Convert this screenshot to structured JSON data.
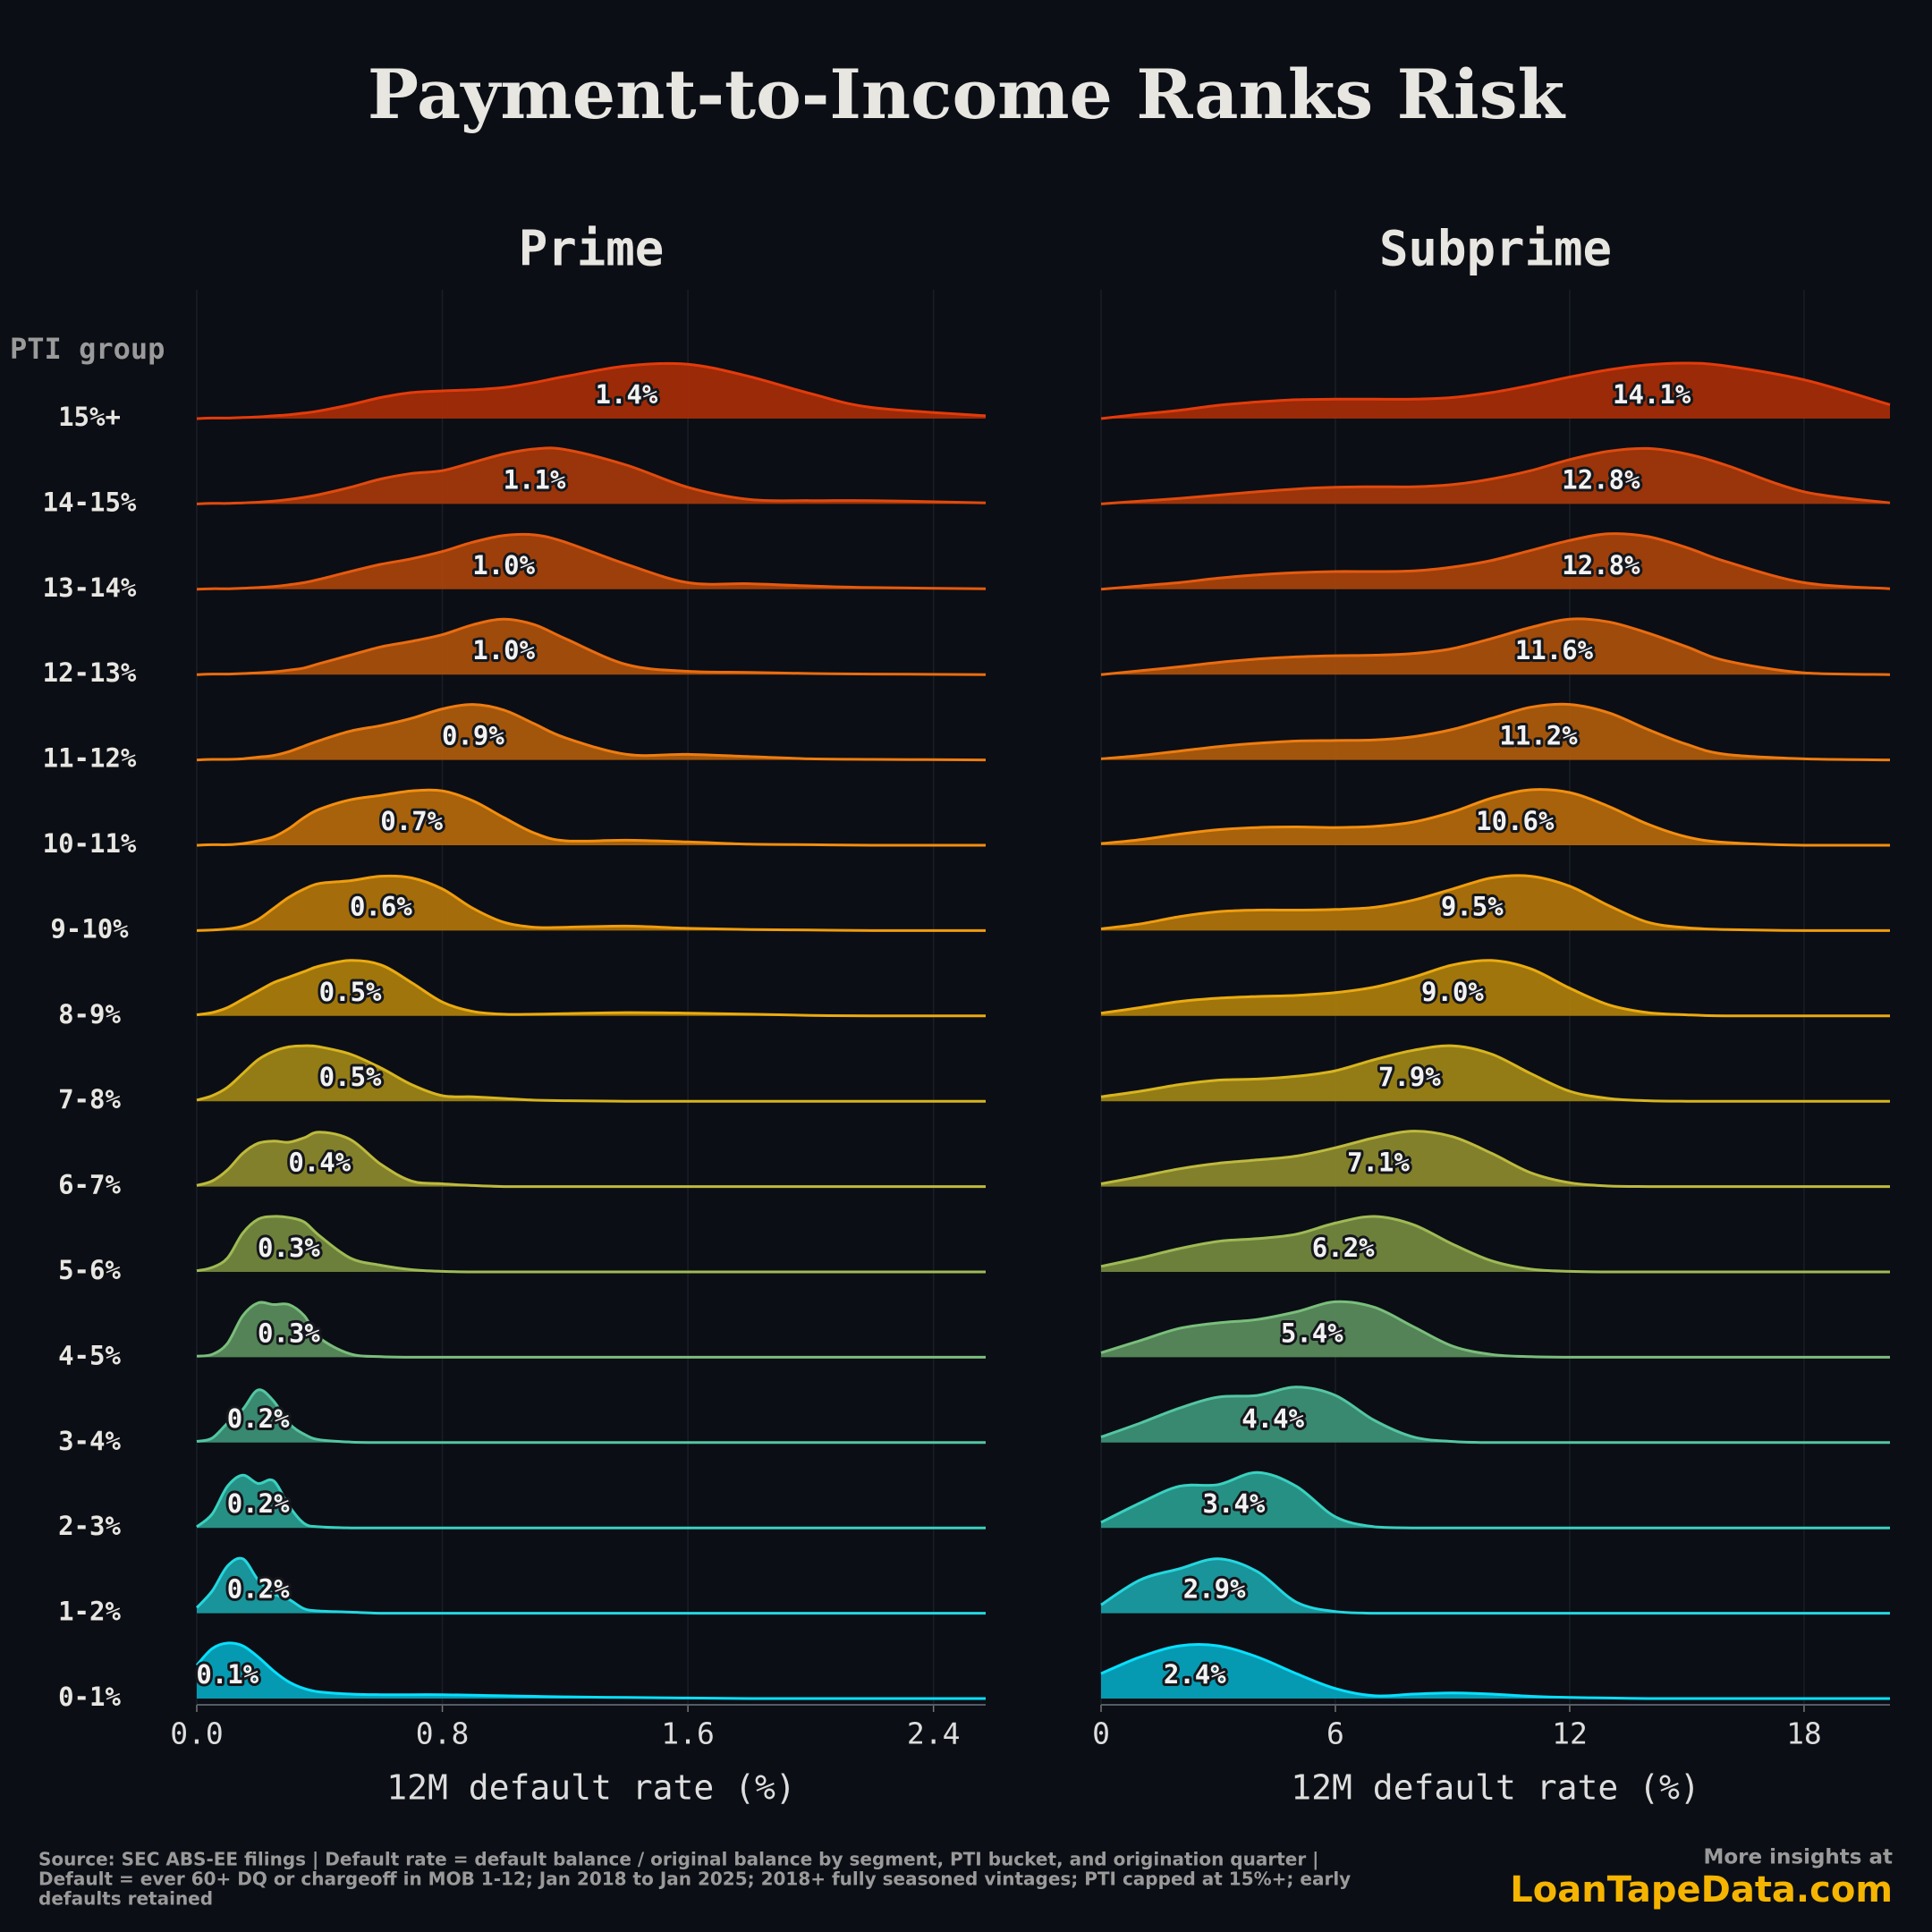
{
  "title": "Payment-to-Income Ranks Risk",
  "y_axis_title": "PTI group",
  "chart_data": [
    {
      "type": "ridgeline",
      "title": "Prime",
      "x_label": "12M default rate (%)",
      "categories": [
        "0-1%",
        "1-2%",
        "2-3%",
        "3-4%",
        "4-5%",
        "5-6%",
        "6-7%",
        "7-8%",
        "8-9%",
        "9-10%",
        "10-11%",
        "11-12%",
        "12-13%",
        "13-14%",
        "14-15%",
        "15%+"
      ],
      "xlim": [
        0,
        2.57
      ],
      "xticks": [
        {
          "value": 0,
          "label": "0.0"
        },
        0.8,
        1.6,
        2.4
      ],
      "grid": true,
      "x": [
        0,
        0.05,
        0.1,
        0.15,
        0.2,
        0.25,
        0.3,
        0.35,
        0.4,
        0.5,
        0.6,
        0.7,
        0.8,
        0.9,
        1.0,
        1.1,
        1.2,
        1.4,
        1.6,
        1.8,
        2.0,
        2.2,
        2.57
      ],
      "series": [
        {
          "color": "#05a6c0",
          "mean": 0.1,
          "mean_label": "0.1%",
          "values": [
            0.6,
            0.9,
            1,
            0.95,
            0.75,
            0.5,
            0.3,
            0.18,
            0.12,
            0.08,
            0.07,
            0.07,
            0.07,
            0.06,
            0.05,
            0.04,
            0.03,
            0.02,
            0.01,
            0,
            0,
            0,
            0
          ]
        },
        {
          "color": "#1a9fa6",
          "mean": 0.2,
          "mean_label": "0.2%",
          "values": [
            0.1,
            0.4,
            0.85,
            0.98,
            0.6,
            0.35,
            0.25,
            0.08,
            0.04,
            0.02,
            0,
            0,
            0,
            0,
            0,
            0,
            0,
            0,
            0,
            0,
            0,
            0,
            0
          ]
        },
        {
          "color": "#2a9b8e",
          "mean": 0.2,
          "mean_label": "0.2%",
          "values": [
            0.02,
            0.25,
            0.75,
            0.95,
            0.8,
            0.85,
            0.4,
            0.08,
            0.02,
            0,
            0,
            0,
            0,
            0,
            0,
            0,
            0,
            0,
            0,
            0,
            0,
            0,
            0
          ]
        },
        {
          "color": "#3e9378",
          "mean": 0.2,
          "mean_label": "0.2%",
          "values": [
            0.02,
            0.08,
            0.35,
            0.6,
            0.95,
            0.75,
            0.35,
            0.15,
            0.05,
            0.01,
            0,
            0,
            0,
            0,
            0,
            0,
            0,
            0,
            0,
            0,
            0,
            0,
            0
          ]
        },
        {
          "color": "#5a8d5c",
          "mean": 0.3,
          "mean_label": "0.3%",
          "values": [
            0.02,
            0.05,
            0.25,
            0.75,
            0.98,
            0.95,
            0.95,
            0.75,
            0.35,
            0.06,
            0.01,
            0,
            0,
            0,
            0,
            0,
            0,
            0,
            0,
            0,
            0,
            0,
            0
          ]
        },
        {
          "color": "#768a3f",
          "mean": 0.3,
          "mean_label": "0.3%",
          "values": [
            0.02,
            0.08,
            0.25,
            0.7,
            0.95,
            1,
            0.98,
            0.9,
            0.65,
            0.25,
            0.12,
            0.04,
            0.01,
            0,
            0,
            0,
            0,
            0,
            0,
            0,
            0,
            0,
            0
          ]
        },
        {
          "color": "#8d8a2e",
          "mean": 0.4,
          "mean_label": "0.4%",
          "values": [
            0.02,
            0.1,
            0.3,
            0.6,
            0.78,
            0.82,
            0.8,
            0.88,
            0.98,
            0.85,
            0.4,
            0.1,
            0.05,
            0.02,
            0,
            0,
            0,
            0,
            0,
            0,
            0,
            0,
            0
          ]
        },
        {
          "color": "#a08617",
          "mean": 0.5,
          "mean_label": "0.5%",
          "values": [
            0.02,
            0.1,
            0.25,
            0.5,
            0.75,
            0.9,
            0.98,
            1,
            0.98,
            0.85,
            0.6,
            0.3,
            0.1,
            0.08,
            0.05,
            0.02,
            0.01,
            0,
            0,
            0,
            0,
            0,
            0
          ]
        },
        {
          "color": "#ae7f0c",
          "mean": 0.5,
          "mean_label": "0.5%",
          "values": [
            0.02,
            0.06,
            0.15,
            0.3,
            0.45,
            0.6,
            0.7,
            0.8,
            0.9,
            1,
            0.92,
            0.6,
            0.25,
            0.08,
            0.03,
            0.03,
            0.04,
            0.06,
            0.05,
            0.03,
            0.01,
            0,
            0
          ]
        },
        {
          "color": "#b2740a",
          "mean": 0.6,
          "mean_label": "0.6%",
          "values": [
            0,
            0.01,
            0.03,
            0.08,
            0.2,
            0.4,
            0.6,
            0.75,
            0.85,
            0.9,
            0.98,
            0.95,
            0.75,
            0.4,
            0.15,
            0.06,
            0.06,
            0.08,
            0.04,
            0.02,
            0.01,
            0,
            0
          ]
        },
        {
          "color": "#b5690b",
          "mean": 0.7,
          "mean_label": "0.7%",
          "values": [
            0,
            0.01,
            0.01,
            0.03,
            0.08,
            0.15,
            0.3,
            0.5,
            0.65,
            0.82,
            0.9,
            0.98,
            0.98,
            0.8,
            0.5,
            0.22,
            0.08,
            0.09,
            0.06,
            0.02,
            0.01,
            0,
            0
          ]
        },
        {
          "color": "#b05c0c",
          "mean": 0.9,
          "mean_label": "0.9%",
          "values": [
            0,
            0.01,
            0.01,
            0.02,
            0.05,
            0.08,
            0.15,
            0.25,
            0.35,
            0.52,
            0.62,
            0.75,
            0.92,
            1,
            0.9,
            0.65,
            0.4,
            0.1,
            0.1,
            0.06,
            0.02,
            0.01,
            0
          ]
        },
        {
          "color": "#ad500c",
          "mean": 1.0,
          "mean_label": "1.0%",
          "values": [
            0,
            0.01,
            0.01,
            0.02,
            0.03,
            0.05,
            0.08,
            0.12,
            0.2,
            0.35,
            0.5,
            0.6,
            0.72,
            0.9,
            1,
            0.9,
            0.65,
            0.18,
            0.06,
            0.04,
            0.02,
            0.01,
            0
          ]
        },
        {
          "color": "#aa430b",
          "mean": 1.0,
          "mean_label": "1.0%",
          "values": [
            0,
            0.01,
            0.01,
            0.02,
            0.03,
            0.05,
            0.08,
            0.12,
            0.18,
            0.32,
            0.45,
            0.55,
            0.68,
            0.85,
            0.97,
            0.98,
            0.85,
            0.45,
            0.12,
            0.1,
            0.06,
            0.03,
            0.01
          ]
        },
        {
          "color": "#a7370a",
          "mean": 1.1,
          "mean_label": "1.1%",
          "values": [
            0,
            0.01,
            0.01,
            0.02,
            0.03,
            0.05,
            0.08,
            0.12,
            0.17,
            0.3,
            0.45,
            0.55,
            0.6,
            0.75,
            0.9,
            0.99,
            0.98,
            0.7,
            0.3,
            0.08,
            0.06,
            0.06,
            0.02
          ]
        },
        {
          "color": "#a82c08",
          "mean": 1.4,
          "mean_label": "1.4%",
          "values": [
            0,
            0.01,
            0.01,
            0.02,
            0.03,
            0.05,
            0.07,
            0.1,
            0.14,
            0.25,
            0.38,
            0.47,
            0.5,
            0.52,
            0.56,
            0.65,
            0.76,
            0.95,
            0.98,
            0.76,
            0.45,
            0.2,
            0.05
          ]
        }
      ]
    },
    {
      "type": "ridgeline",
      "title": "Subprime",
      "x_label": "12M default rate (%)",
      "xlim": [
        0,
        20.2
      ],
      "xticks": [
        0,
        6,
        12,
        18
      ],
      "grid": true,
      "x": [
        0,
        1,
        2,
        3,
        4,
        5,
        6,
        7,
        8,
        9,
        10,
        11,
        12,
        13,
        14,
        15,
        16,
        18,
        20.2
      ],
      "series": [
        {
          "color": "#05a6c0",
          "mean": 2.4,
          "mean_label": "2.4%",
          "values": [
            0.45,
            0.75,
            0.95,
            0.95,
            0.75,
            0.45,
            0.18,
            0.05,
            0.08,
            0.1,
            0.08,
            0.04,
            0.02,
            0.01,
            0,
            0,
            0,
            0,
            0
          ]
        },
        {
          "color": "#1a9fa6",
          "mean": 2.9,
          "mean_label": "2.9%",
          "values": [
            0.15,
            0.6,
            0.8,
            0.98,
            0.75,
            0.2,
            0.03,
            0,
            0,
            0,
            0,
            0,
            0,
            0,
            0,
            0,
            0,
            0,
            0
          ]
        },
        {
          "color": "#2a9b8e",
          "mean": 3.4,
          "mean_label": "3.4%",
          "values": [
            0.1,
            0.45,
            0.75,
            0.78,
            1,
            0.75,
            0.2,
            0.02,
            0,
            0,
            0,
            0,
            0,
            0,
            0,
            0,
            0,
            0,
            0
          ]
        },
        {
          "color": "#3e9378",
          "mean": 4.4,
          "mean_label": "4.4%",
          "values": [
            0.1,
            0.35,
            0.62,
            0.82,
            0.85,
            1,
            0.85,
            0.4,
            0.1,
            0.02,
            0,
            0,
            0,
            0,
            0,
            0,
            0,
            0,
            0
          ]
        },
        {
          "color": "#5a8d5c",
          "mean": 5.4,
          "mean_label": "5.4%",
          "values": [
            0.08,
            0.3,
            0.52,
            0.62,
            0.68,
            0.82,
            1,
            0.9,
            0.55,
            0.2,
            0.05,
            0.01,
            0,
            0,
            0,
            0,
            0,
            0,
            0
          ]
        },
        {
          "color": "#768a3f",
          "mean": 6.2,
          "mean_label": "6.2%",
          "values": [
            0.1,
            0.25,
            0.42,
            0.55,
            0.6,
            0.68,
            0.88,
            1,
            0.85,
            0.5,
            0.2,
            0.05,
            0.01,
            0,
            0,
            0,
            0,
            0,
            0
          ]
        },
        {
          "color": "#8d8a2e",
          "mean": 7.1,
          "mean_label": "7.1%",
          "values": [
            0.05,
            0.18,
            0.32,
            0.42,
            0.48,
            0.55,
            0.7,
            0.88,
            1,
            0.9,
            0.6,
            0.25,
            0.07,
            0.01,
            0,
            0,
            0,
            0,
            0
          ]
        },
        {
          "color": "#a08617",
          "mean": 7.9,
          "mean_label": "7.9%",
          "values": [
            0.08,
            0.18,
            0.3,
            0.38,
            0.4,
            0.45,
            0.55,
            0.75,
            0.92,
            1,
            0.85,
            0.5,
            0.18,
            0.05,
            0.01,
            0,
            0,
            0,
            0
          ]
        },
        {
          "color": "#ae7f0c",
          "mean": 9,
          "mean_label": "9.0%",
          "values": [
            0.05,
            0.15,
            0.26,
            0.32,
            0.35,
            0.37,
            0.42,
            0.52,
            0.7,
            0.92,
            1,
            0.85,
            0.5,
            0.2,
            0.06,
            0.02,
            0,
            0,
            0
          ]
        },
        {
          "color": "#b2740a",
          "mean": 9.5,
          "mean_label": "9.5%",
          "values": [
            0.03,
            0.12,
            0.25,
            0.34,
            0.37,
            0.37,
            0.38,
            0.42,
            0.55,
            0.75,
            0.95,
            0.98,
            0.8,
            0.45,
            0.15,
            0.05,
            0.02,
            0,
            0
          ]
        },
        {
          "color": "#b5690b",
          "mean": 10.6,
          "mean_label": "10.6%",
          "values": [
            0.03,
            0.1,
            0.2,
            0.28,
            0.32,
            0.33,
            0.32,
            0.34,
            0.42,
            0.6,
            0.85,
            1,
            0.95,
            0.7,
            0.38,
            0.15,
            0.05,
            0,
            0
          ]
        },
        {
          "color": "#b05c0c",
          "mean": 11.2,
          "mean_label": "11.2%",
          "values": [
            0.02,
            0.08,
            0.16,
            0.24,
            0.3,
            0.34,
            0.35,
            0.36,
            0.42,
            0.55,
            0.75,
            0.95,
            1,
            0.85,
            0.55,
            0.28,
            0.1,
            0.02,
            0
          ]
        },
        {
          "color": "#ad500c",
          "mean": 11.6,
          "mean_label": "11.6%",
          "values": [
            0,
            0.07,
            0.14,
            0.22,
            0.28,
            0.32,
            0.34,
            0.35,
            0.38,
            0.47,
            0.65,
            0.85,
            1,
            0.95,
            0.75,
            0.5,
            0.25,
            0.03,
            0
          ]
        },
        {
          "color": "#aa430b",
          "mean": 12.8,
          "mean_label": "12.8%",
          "values": [
            0,
            0.06,
            0.12,
            0.2,
            0.26,
            0.3,
            0.32,
            0.32,
            0.33,
            0.4,
            0.52,
            0.7,
            0.88,
            1,
            0.95,
            0.75,
            0.5,
            0.12,
            0.01
          ]
        },
        {
          "color": "#a7370a",
          "mean": 12.8,
          "mean_label": "12.8%",
          "values": [
            0,
            0.05,
            0.1,
            0.16,
            0.22,
            0.27,
            0.3,
            0.31,
            0.31,
            0.35,
            0.45,
            0.6,
            0.8,
            0.95,
            1,
            0.9,
            0.7,
            0.22,
            0.02
          ]
        },
        {
          "color": "#a82c08",
          "mean": 14.1,
          "mean_label": "14.1%",
          "values": [
            0,
            0.08,
            0.15,
            0.24,
            0.3,
            0.34,
            0.35,
            0.35,
            0.35,
            0.38,
            0.47,
            0.6,
            0.75,
            0.88,
            0.97,
            1,
            0.95,
            0.7,
            0.25
          ]
        }
      ]
    }
  ],
  "footer": {
    "source": [
      "Source: SEC ABS-EE filings | Default rate = default balance / original balance by segment, PTI bucket, and origination quarter |",
      "Default = ever 60+ DQ or chargeoff in MOB 1-12; Jan 2018 to Jan 2025; 2018+ fully seasoned vintages; PTI capped at 15%+; early",
      "defaults retained"
    ],
    "cta": "More insights at",
    "brand": "LoanTapeData.com"
  }
}
